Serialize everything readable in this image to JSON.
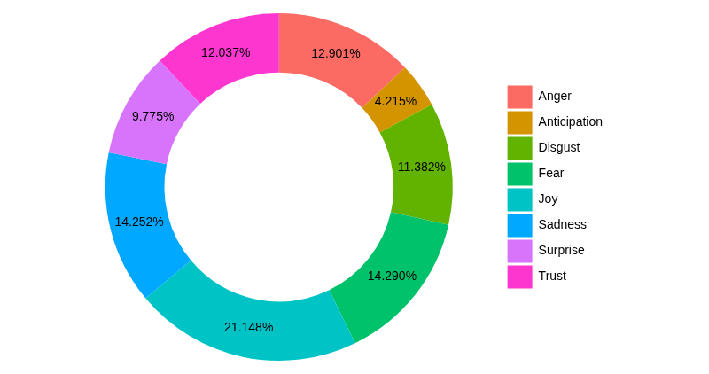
{
  "chart_data": {
    "type": "doughnut",
    "categories": [
      "Anger",
      "Anticipation",
      "Disgust",
      "Fear",
      "Joy",
      "Sadness",
      "Surprise",
      "Trust"
    ],
    "values": [
      12.901,
      4.215,
      11.382,
      14.29,
      21.148,
      14.252,
      9.775,
      12.037
    ],
    "value_labels": [
      "12.901%",
      "4.215%",
      "11.382%",
      "14.290%",
      "21.148%",
      "14.252%",
      "9.775%",
      "12.037%"
    ],
    "colors": [
      "#fc6a64",
      "#d49400",
      "#62b300",
      "#00c26a",
      "#00c3c6",
      "#00a8ff",
      "#d774fb",
      "#fd36d0"
    ],
    "legend": "right",
    "data_labels": true
  }
}
